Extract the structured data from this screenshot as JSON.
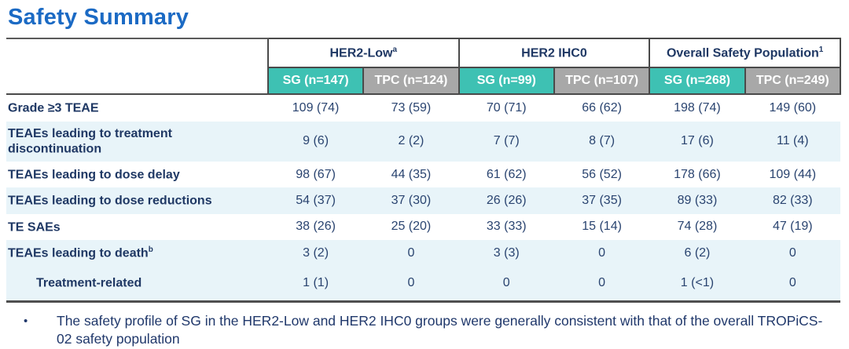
{
  "title": "Safety Summary",
  "colors": {
    "title_blue": "#1b6ac4",
    "header_navy": "#1f3864",
    "data_navy": "#2a4470",
    "sg_teal": "#3ec1b3",
    "tpc_gray": "#a8a8a8",
    "row_stripe": "#e8f4f9"
  },
  "table": {
    "groups": [
      {
        "label": "HER2-Low",
        "sup": "a"
      },
      {
        "label": "HER2 IHC0",
        "sup": ""
      },
      {
        "label": "Overall Safety Population",
        "sup": "1"
      }
    ],
    "columns": [
      {
        "label": "SG (n=147)",
        "variant": "teal"
      },
      {
        "label": "TPC (n=124)",
        "variant": "gray"
      },
      {
        "label": "SG (n=99)",
        "variant": "teal"
      },
      {
        "label": "TPC (n=107)",
        "variant": "gray"
      },
      {
        "label": "SG (n=268)",
        "variant": "teal"
      },
      {
        "label": "TPC (n=249)",
        "variant": "gray"
      }
    ],
    "rows": [
      {
        "label": "Grade ≥3 TEAE",
        "sup": "",
        "indent": false,
        "shaded": false,
        "tall": false,
        "values": [
          "109 (74)",
          "73 (59)",
          "70 (71)",
          "66 (62)",
          "198 (74)",
          "149 (60)"
        ]
      },
      {
        "label": "TEAEs leading to treatment discontinuation",
        "sup": "",
        "indent": false,
        "shaded": true,
        "tall": false,
        "values": [
          "9 (6)",
          "2 (2)",
          "7 (7)",
          "8 (7)",
          "17 (6)",
          "11 (4)"
        ]
      },
      {
        "label": "TEAEs leading to dose delay",
        "sup": "",
        "indent": false,
        "shaded": false,
        "tall": false,
        "values": [
          "98 (67)",
          "44 (35)",
          "61 (62)",
          "56 (52)",
          "178 (66)",
          "109 (44)"
        ]
      },
      {
        "label": "TEAEs leading to dose reductions",
        "sup": "",
        "indent": false,
        "shaded": true,
        "tall": false,
        "values": [
          "54 (37)",
          "37 (30)",
          "26 (26)",
          "37 (35)",
          "89 (33)",
          "82 (33)"
        ]
      },
      {
        "label": "TE SAEs",
        "sup": "",
        "indent": false,
        "shaded": false,
        "tall": false,
        "values": [
          "38 (26)",
          "25 (20)",
          "33 (33)",
          "15 (14)",
          "74 (28)",
          "47 (19)"
        ]
      },
      {
        "label": "TEAEs leading to death",
        "sup": "b",
        "indent": false,
        "shaded": true,
        "tall": false,
        "values": [
          "3 (2)",
          "0",
          "3 (3)",
          "0",
          "6 (2)",
          "0"
        ]
      },
      {
        "label": "Treatment-related",
        "sup": "",
        "indent": true,
        "shaded": true,
        "tall": true,
        "values": [
          "1 (1)",
          "0",
          "0",
          "0",
          "1 (<1)",
          "0"
        ]
      }
    ]
  },
  "footnote": {
    "bullet": "•",
    "text": "The safety profile of SG in the HER2-Low and HER2 IHC0 groups were generally consistent with that of the overall TROPiCS-02 safety population"
  }
}
